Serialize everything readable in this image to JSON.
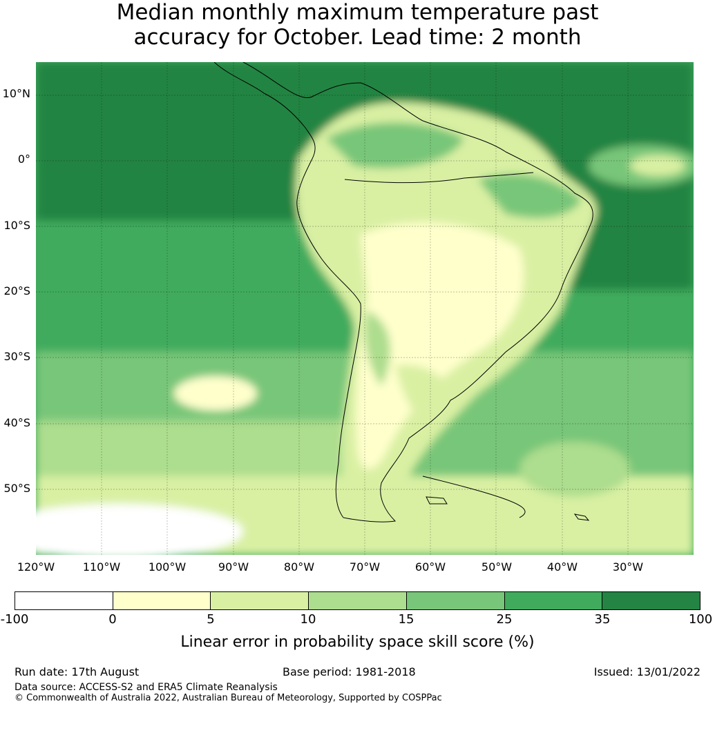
{
  "title_line1": "Median monthly maximum temperature past",
  "title_line2": "accuracy for October. Lead time: 2 month",
  "map": {
    "lat_labels": [
      "10°N",
      "0°",
      "10°S",
      "20°S",
      "30°S",
      "40°S",
      "50°S"
    ],
    "lon_labels": [
      "120°W",
      "110°W",
      "100°W",
      "90°W",
      "80°W",
      "70°W",
      "60°W",
      "50°W",
      "40°W",
      "30°W"
    ],
    "extent": {
      "lon_min": -120,
      "lon_max": -20,
      "lat_min": -60,
      "lat_max": 15
    }
  },
  "colorbar": {
    "ticks": [
      "-100",
      "0",
      "5",
      "10",
      "15",
      "25",
      "35",
      "100"
    ],
    "colors": [
      "#ffffff",
      "#ffffcc",
      "#d9f0a3",
      "#addd8e",
      "#78c679",
      "#41ab5d",
      "#238443"
    ],
    "label": "Linear error in probability space skill score (%)"
  },
  "footer": {
    "run_date": "Run date: 17th August",
    "base_period": "Base period: 1981-2018",
    "issued": "Issued: 13/01/2022",
    "data_source": "Data source: ACCESS-S2 and ERA5 Climate Reanalysis",
    "copyright": "© Commonwealth of Australia 2022, Australian Bureau of Meteorology, Supported by COSPPac"
  }
}
